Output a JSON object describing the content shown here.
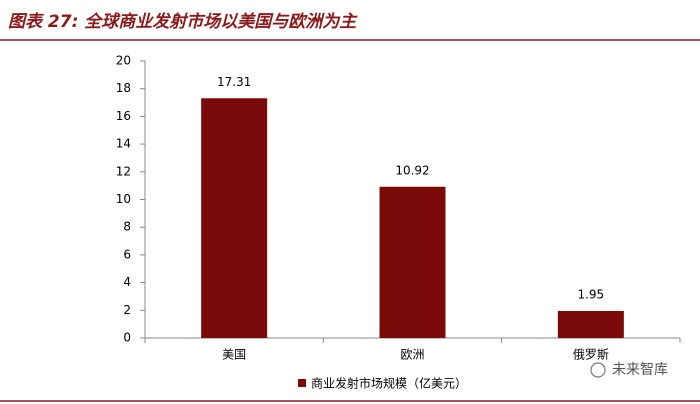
{
  "chart_data": {
    "type": "bar",
    "title": "图表 27: 全球商业发射市场以美国与欧洲为主",
    "categories": [
      "美国",
      "欧洲",
      "俄罗斯"
    ],
    "series": [
      {
        "name": "商业发射市场规模（亿美元）",
        "color": "#7a0a0a",
        "values": [
          17.31,
          10.92,
          1.95
        ]
      }
    ],
    "ylim": [
      0,
      20
    ],
    "yticks": [
      0,
      2,
      4,
      6,
      8,
      10,
      12,
      14,
      16,
      18,
      20
    ],
    "grid": false,
    "legend": "bottom",
    "watermark": "未来智库"
  }
}
